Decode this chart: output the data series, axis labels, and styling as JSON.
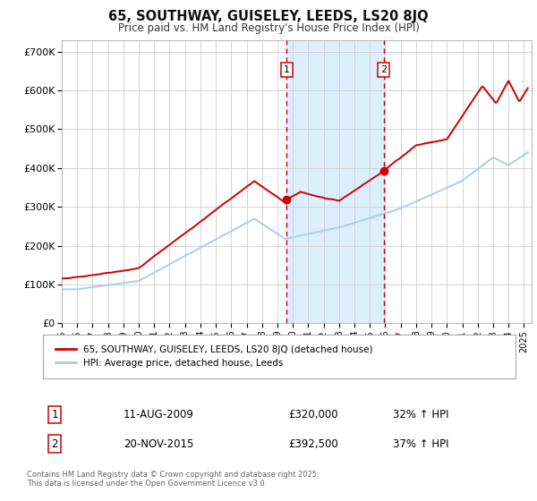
{
  "title": "65, SOUTHWAY, GUISELEY, LEEDS, LS20 8JQ",
  "subtitle": "Price paid vs. HM Land Registry's House Price Index (HPI)",
  "legend_label_red": "65, SOUTHWAY, GUISELEY, LEEDS, LS20 8JQ (detached house)",
  "legend_label_blue": "HPI: Average price, detached house, Leeds",
  "sale1_date": "11-AUG-2009",
  "sale1_price": "£320,000",
  "sale1_hpi": "32% ↑ HPI",
  "sale1_x": 2009.61,
  "sale1_y": 320000,
  "sale2_date": "20-NOV-2015",
  "sale2_price": "£392,500",
  "sale2_hpi": "37% ↑ HPI",
  "sale2_x": 2015.89,
  "sale2_y": 392500,
  "vline1_x": 2009.61,
  "vline2_x": 2015.89,
  "shade_x1": 2009.61,
  "shade_x2": 2015.89,
  "ylim_min": 0,
  "ylim_max": 730000,
  "xlim_min": 1995.0,
  "xlim_max": 2025.5,
  "yticks": [
    0,
    100000,
    200000,
    300000,
    400000,
    500000,
    600000,
    700000
  ],
  "ytick_labels": [
    "£0",
    "£100K",
    "£200K",
    "£300K",
    "£400K",
    "£500K",
    "£600K",
    "£700K"
  ],
  "background_color": "#ffffff",
  "grid_color": "#cccccc",
  "red_color": "#cc0000",
  "blue_color": "#aaccee",
  "shade_color": "#ddeeff",
  "vline_color": "#cc0000",
  "footnote_line1": "Contains HM Land Registry data © Crown copyright and database right 2025.",
  "footnote_line2": "This data is licensed under the Open Government Licence v3.0."
}
